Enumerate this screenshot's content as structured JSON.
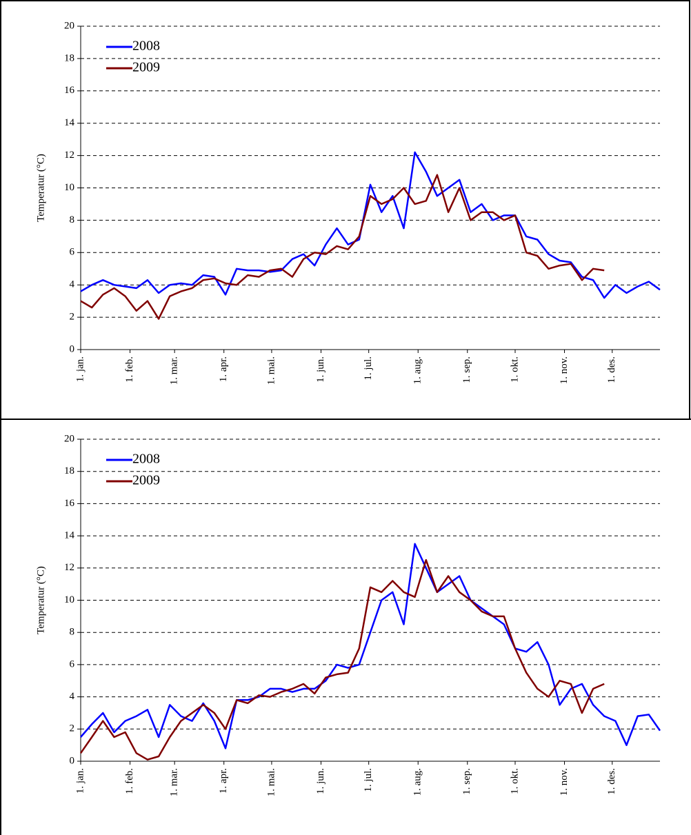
{
  "chart_data": [
    {
      "type": "line",
      "ylabel": "Temperatur (°C)",
      "x": [
        1,
        8,
        15,
        22,
        29,
        36,
        43,
        50,
        57,
        64,
        71,
        78,
        85,
        92,
        99,
        106,
        113,
        120,
        127,
        134,
        141,
        148,
        155,
        162,
        169,
        176,
        183,
        190,
        197,
        204,
        211,
        218,
        225,
        232,
        239,
        246,
        253,
        260,
        267,
        274,
        281,
        288,
        295,
        302,
        309,
        316,
        323,
        330,
        337,
        344,
        351,
        358,
        365
      ],
      "xlim": [
        1,
        365
      ],
      "xticks": [
        {
          "value": 1,
          "label": "1. jan."
        },
        {
          "value": 32,
          "label": "1. feb."
        },
        {
          "value": 60,
          "label": "1. mar."
        },
        {
          "value": 91,
          "label": "1. apr."
        },
        {
          "value": 121,
          "label": "1. mai."
        },
        {
          "value": 152,
          "label": "1. jun."
        },
        {
          "value": 182,
          "label": "1. jul."
        },
        {
          "value": 213,
          "label": "1. aug."
        },
        {
          "value": 244,
          "label": "1. sep."
        },
        {
          "value": 274,
          "label": "1. okt."
        },
        {
          "value": 305,
          "label": "1. nov."
        },
        {
          "value": 335,
          "label": "1. des."
        }
      ],
      "ylim": [
        0,
        20
      ],
      "yticks": [
        0,
        2,
        4,
        6,
        8,
        10,
        12,
        14,
        16,
        18,
        20
      ],
      "grid": true,
      "legend": "upper left",
      "series": [
        {
          "name": "2008",
          "color": "#0000ff",
          "values": [
            3.6,
            4.0,
            4.3,
            4.0,
            3.9,
            3.8,
            4.3,
            3.5,
            4.0,
            4.1,
            4.0,
            4.6,
            4.5,
            3.4,
            5.0,
            4.9,
            4.9,
            4.8,
            4.9,
            5.6,
            5.9,
            5.2,
            6.5,
            7.5,
            6.5,
            6.8,
            10.2,
            8.5,
            9.5,
            7.5,
            12.2,
            11.0,
            9.5,
            10.0,
            10.5,
            8.5,
            9.0,
            8.0,
            8.3,
            8.3,
            7.0,
            6.8,
            5.9,
            5.5,
            5.4,
            4.5,
            4.3,
            3.2,
            4.0,
            3.5,
            3.9,
            4.2,
            3.7
          ]
        },
        {
          "name": "2009",
          "color": "#800000",
          "values": [
            3.0,
            2.6,
            3.4,
            3.8,
            3.3,
            2.4,
            3.0,
            1.9,
            3.3,
            3.6,
            3.8,
            4.3,
            4.4,
            4.1,
            4.0,
            4.6,
            4.5,
            4.9,
            5.0,
            4.5,
            5.6,
            6.0,
            5.9,
            6.4,
            6.2,
            7.0,
            9.5,
            9.0,
            9.3,
            10.0,
            9.0,
            9.2,
            10.8,
            8.5,
            10.0,
            8.0,
            8.5,
            8.5,
            8.0,
            8.3,
            6.0,
            5.8,
            5.0,
            5.2,
            5.3,
            4.3,
            5.0,
            4.9,
            null,
            null,
            null,
            null,
            null
          ]
        }
      ]
    },
    {
      "type": "line",
      "ylabel": "Temperatur (°C)",
      "x": [
        1,
        8,
        15,
        22,
        29,
        36,
        43,
        50,
        57,
        64,
        71,
        78,
        85,
        92,
        99,
        106,
        113,
        120,
        127,
        134,
        141,
        148,
        155,
        162,
        169,
        176,
        183,
        190,
        197,
        204,
        211,
        218,
        225,
        232,
        239,
        246,
        253,
        260,
        267,
        274,
        281,
        288,
        295,
        302,
        309,
        316,
        323,
        330,
        337,
        344,
        351,
        358,
        365
      ],
      "xlim": [
        1,
        365
      ],
      "xticks": [
        {
          "value": 1,
          "label": "1. jan."
        },
        {
          "value": 32,
          "label": "1. feb."
        },
        {
          "value": 60,
          "label": "1. mar."
        },
        {
          "value": 91,
          "label": "1. apr."
        },
        {
          "value": 121,
          "label": "1. mai."
        },
        {
          "value": 152,
          "label": "1. jun."
        },
        {
          "value": 182,
          "label": "1. jul."
        },
        {
          "value": 213,
          "label": "1. aug."
        },
        {
          "value": 244,
          "label": "1. sep."
        },
        {
          "value": 274,
          "label": "1. okt."
        },
        {
          "value": 305,
          "label": "1. nov."
        },
        {
          "value": 335,
          "label": "1. des."
        }
      ],
      "ylim": [
        0,
        20
      ],
      "yticks": [
        0,
        2,
        4,
        6,
        8,
        10,
        12,
        14,
        16,
        18,
        20
      ],
      "grid": true,
      "legend": "upper left",
      "series": [
        {
          "name": "2008",
          "color": "#0000ff",
          "values": [
            1.5,
            2.3,
            3.0,
            1.8,
            2.5,
            2.8,
            3.2,
            1.5,
            3.5,
            2.8,
            2.5,
            3.6,
            2.5,
            0.8,
            3.8,
            3.8,
            4.0,
            4.5,
            4.5,
            4.3,
            4.5,
            4.5,
            5.0,
            6.0,
            5.8,
            6.0,
            8.0,
            10.0,
            10.5,
            8.5,
            13.5,
            12.0,
            10.5,
            11.0,
            11.5,
            10.0,
            9.5,
            9.0,
            8.5,
            7.0,
            6.8,
            7.4,
            6.0,
            3.5,
            4.5,
            4.8,
            3.5,
            2.8,
            2.5,
            1.0,
            2.8,
            2.9,
            1.9
          ]
        },
        {
          "name": "2009",
          "color": "#800000",
          "values": [
            0.5,
            1.5,
            2.5,
            1.5,
            1.8,
            0.5,
            0.1,
            0.3,
            1.5,
            2.5,
            3.0,
            3.5,
            3.0,
            2.0,
            3.8,
            3.6,
            4.1,
            4.0,
            4.3,
            4.5,
            4.8,
            4.2,
            5.2,
            5.4,
            5.5,
            7.0,
            10.8,
            10.5,
            11.2,
            10.5,
            10.2,
            12.5,
            10.5,
            11.5,
            10.5,
            10.0,
            9.3,
            9.0,
            9.0,
            7.0,
            5.5,
            4.5,
            4.0,
            5.0,
            4.8,
            3.0,
            4.5,
            4.8,
            null,
            null,
            null,
            null,
            null
          ]
        }
      ]
    }
  ]
}
